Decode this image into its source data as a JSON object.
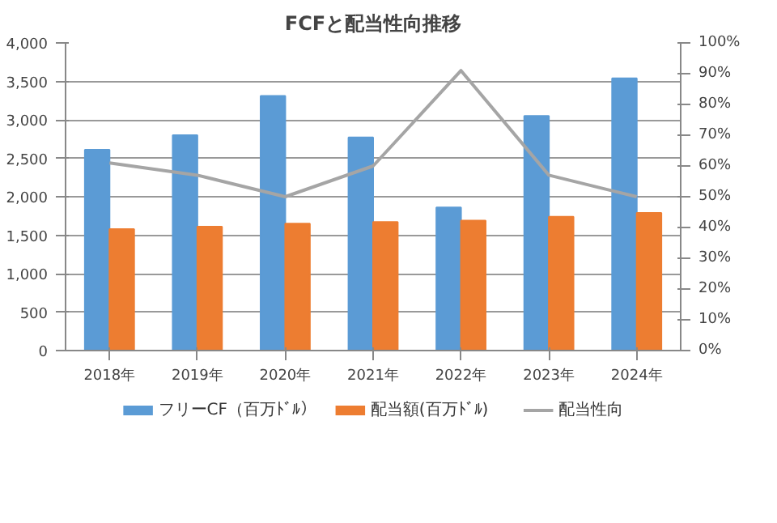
{
  "chart_data": {
    "type": "bar",
    "title": "FCFと配当性向推移",
    "categories": [
      "2018年",
      "2019年",
      "2020年",
      "2021年",
      "2022年",
      "2023年",
      "2024年"
    ],
    "series": [
      {
        "name": "フリーCF（百万ﾄﾞﾙ）",
        "color": "#5b9bd5",
        "values": [
          2610,
          2800,
          3310,
          2770,
          1860,
          3050,
          3540
        ]
      },
      {
        "name": "配当額(百万ﾄﾞﾙ)",
        "color": "#ed7d31",
        "values": [
          1580,
          1610,
          1650,
          1670,
          1690,
          1740,
          1790
        ]
      },
      {
        "name": "配当性向",
        "type": "line",
        "axis": "y2",
        "color": "#a5a5a5",
        "values": [
          61,
          57,
          50,
          60,
          91,
          57,
          50
        ]
      }
    ],
    "ylim": [
      0,
      4000
    ],
    "yticks": [
      {
        "value": 0,
        "label": "0"
      },
      {
        "value": 500,
        "label": "500"
      },
      {
        "value": 1000,
        "label": "1,000"
      },
      {
        "value": 1500,
        "label": "1,500"
      },
      {
        "value": 2000,
        "label": "2,000"
      },
      {
        "value": 2500,
        "label": "2,500"
      },
      {
        "value": 3000,
        "label": "3,000"
      },
      {
        "value": 3500,
        "label": "3,500"
      },
      {
        "value": 4000,
        "label": "4,000"
      }
    ],
    "y2lim": [
      0,
      100
    ],
    "y2ticks": [
      {
        "value": 0,
        "label": "0%"
      },
      {
        "value": 10,
        "label": "10%"
      },
      {
        "value": 20,
        "label": "20%"
      },
      {
        "value": 30,
        "label": "30%"
      },
      {
        "value": 40,
        "label": "40%"
      },
      {
        "value": 50,
        "label": "50%"
      },
      {
        "value": 60,
        "label": "60%"
      },
      {
        "value": 70,
        "label": "70%"
      },
      {
        "value": 80,
        "label": "80%"
      },
      {
        "value": 90,
        "label": "90%"
      },
      {
        "value": 100,
        "label": "100%"
      }
    ],
    "grid": "y",
    "legend": "bottom"
  }
}
